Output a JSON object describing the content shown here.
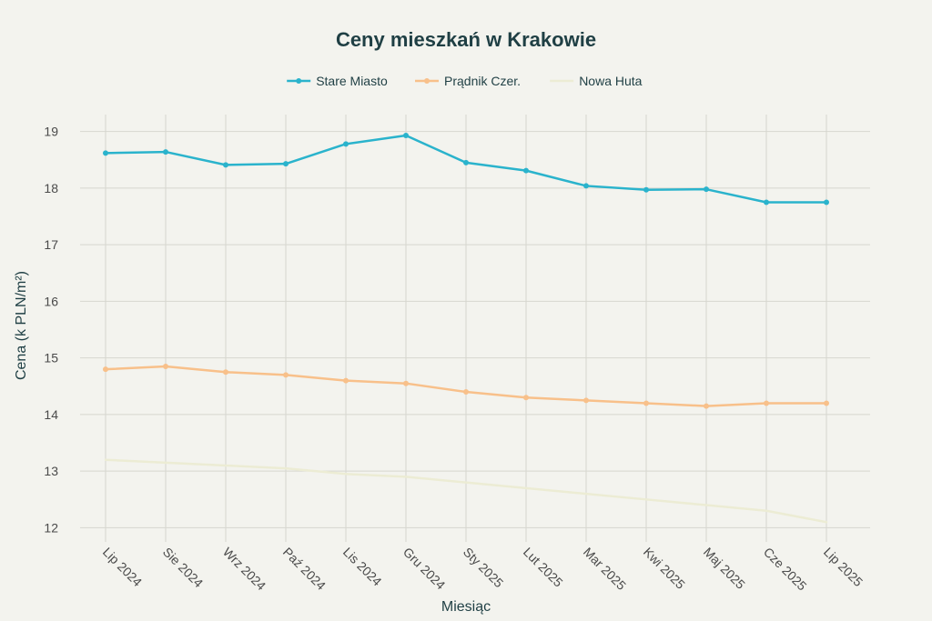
{
  "chart_data": {
    "type": "line",
    "title": "Ceny mieszkań w Krakowie",
    "xlabel": "Miesiąc",
    "ylabel": "Cena (k PLN/m²)",
    "categories": [
      "Lip 2024",
      "Sie 2024",
      "Wrz 2024",
      "Paź 2024",
      "Lis 2024",
      "Gru 2024",
      "Sty 2025",
      "Lut 2025",
      "Mar 2025",
      "Kwi 2025",
      "Maj 2025",
      "Cze 2025",
      "Lip 2025"
    ],
    "ylim": [
      11.75,
      19.3
    ],
    "yticks": [
      12,
      13,
      14,
      15,
      16,
      17,
      18,
      19
    ],
    "grid": true,
    "legend_position": "top-center",
    "series": [
      {
        "name": "Stare Miasto",
        "color": "#2ab3cc",
        "markers": true,
        "values": [
          18.62,
          18.64,
          18.41,
          18.43,
          18.78,
          18.93,
          18.45,
          18.31,
          18.04,
          17.97,
          17.98,
          17.75,
          17.75
        ]
      },
      {
        "name": "Prądnik Czer.",
        "color": "#f8c08a",
        "markers": true,
        "values": [
          14.8,
          14.85,
          14.75,
          14.7,
          14.6,
          14.55,
          14.4,
          14.3,
          14.25,
          14.2,
          14.15,
          14.2,
          14.2
        ]
      },
      {
        "name": "Nowa Huta",
        "color": "#ececd4",
        "markers": false,
        "values": [
          13.2,
          13.15,
          13.1,
          13.05,
          12.95,
          12.9,
          12.8,
          12.7,
          12.6,
          12.5,
          12.4,
          12.3,
          12.1
        ]
      }
    ]
  }
}
